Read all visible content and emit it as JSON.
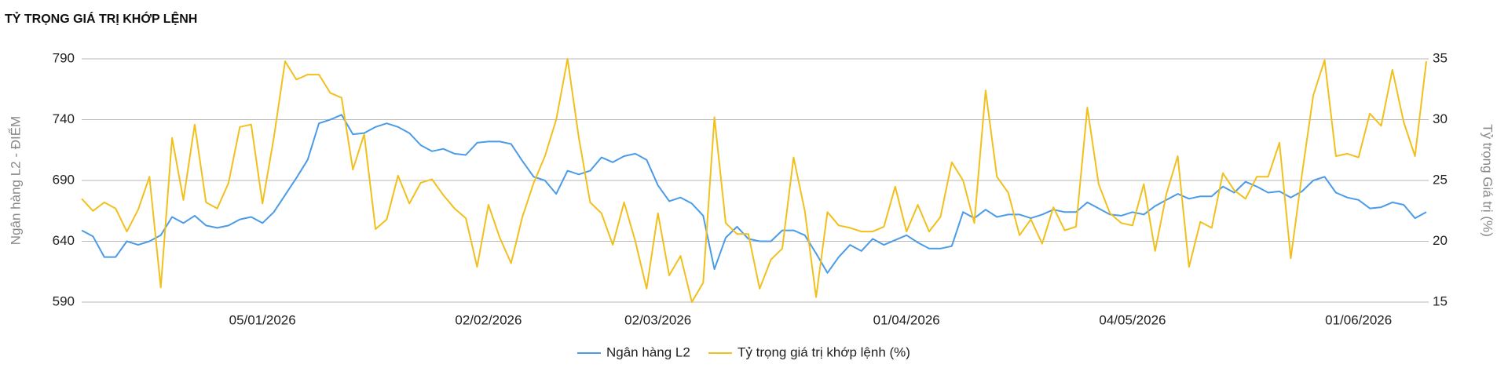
{
  "chart_data": {
    "type": "line",
    "title": "TỶ TRỌNG GIÁ TRỊ KHỚP LỆNH",
    "y_label": "Ngân hàng L2 - ĐIỂM",
    "y2_label": "Tỷ trọng Giá trị (%)",
    "categories": [
      null,
      null,
      null,
      null,
      null,
      null,
      null,
      null,
      null,
      null,
      null,
      null,
      null,
      null,
      null,
      null,
      "05/01/2026",
      null,
      null,
      null,
      null,
      null,
      null,
      null,
      null,
      null,
      null,
      null,
      null,
      null,
      null,
      null,
      null,
      null,
      null,
      null,
      "02/02/2026",
      null,
      null,
      null,
      null,
      null,
      null,
      null,
      null,
      null,
      null,
      null,
      null,
      null,
      null,
      "02/03/2026",
      null,
      null,
      null,
      null,
      null,
      null,
      null,
      null,
      null,
      null,
      null,
      null,
      null,
      null,
      null,
      null,
      null,
      null,
      null,
      null,
      null,
      "01/04/2026",
      null,
      null,
      null,
      null,
      null,
      null,
      null,
      null,
      null,
      null,
      null,
      null,
      null,
      null,
      null,
      null,
      null,
      null,
      null,
      "04/05/2026",
      null,
      null,
      null,
      null,
      null,
      null,
      null,
      null,
      null,
      null,
      null,
      null,
      null,
      null,
      null,
      null,
      null,
      null,
      null,
      "01/06/2026",
      null,
      null,
      null,
      null,
      null,
      null
    ],
    "series": [
      {
        "name": "Ngân hàng L2",
        "color": "#4a9be8",
        "axis": "y",
        "values": [
          649,
          644,
          627,
          627,
          640,
          637,
          640,
          645,
          660,
          655,
          661,
          653,
          651,
          653,
          658,
          660,
          655,
          664,
          678,
          692,
          707,
          737,
          740,
          744,
          728,
          729,
          734,
          737,
          734,
          729,
          719,
          714,
          716,
          712,
          711,
          721,
          722,
          722,
          720,
          706,
          693,
          690,
          679,
          698,
          695,
          698,
          709,
          705,
          710,
          712,
          707,
          686,
          673,
          676,
          671,
          661,
          617,
          643,
          652,
          642,
          640,
          640,
          649,
          649,
          645,
          630,
          614,
          627,
          637,
          632,
          642,
          637,
          641,
          645,
          639,
          634,
          634,
          636,
          664,
          659,
          666,
          660,
          662,
          662,
          659,
          662,
          666,
          664,
          664,
          672,
          667,
          662,
          661,
          664,
          662,
          669,
          674,
          679,
          675,
          677,
          677,
          685,
          680,
          689,
          685,
          680,
          681,
          676,
          681,
          690,
          693,
          680,
          676,
          674,
          667,
          668,
          672,
          670,
          659,
          664
        ]
      },
      {
        "name": "Tỷ trọng giá trị khớp lệnh (%)",
        "color": "#f2c01c",
        "axis": "y2",
        "values": [
          23.5,
          22.5,
          23.2,
          22.7,
          20.8,
          22.6,
          25.3,
          16.2,
          28.5,
          23.4,
          29.6,
          23.2,
          22.7,
          24.8,
          29.4,
          29.6,
          23.1,
          28.5,
          34.8,
          33.3,
          33.7,
          33.7,
          32.2,
          31.8,
          25.9,
          28.8,
          21.0,
          21.8,
          25.4,
          23.1,
          24.8,
          25.1,
          23.8,
          22.7,
          21.9,
          17.9,
          23.0,
          20.3,
          18.2,
          22.0,
          24.8,
          27.0,
          30.0,
          35.0,
          28.5,
          23.2,
          22.3,
          19.7,
          23.2,
          20.0,
          16.1,
          22.3,
          17.2,
          18.8,
          15.0,
          16.6,
          30.2,
          21.5,
          20.6,
          20.6,
          16.1,
          18.5,
          19.4,
          26.9,
          22.5,
          15.4,
          22.4,
          21.3,
          21.1,
          20.8,
          20.8,
          21.2,
          24.5,
          20.8,
          23.0,
          20.8,
          22.0,
          26.5,
          25.0,
          21.5,
          32.4,
          25.3,
          24.0,
          20.5,
          21.8,
          19.8,
          22.8,
          20.9,
          21.2,
          31.0,
          24.7,
          22.3,
          21.5,
          21.3,
          24.7,
          19.2,
          23.9,
          27.0,
          17.9,
          21.6,
          21.1,
          25.6,
          24.2,
          23.5,
          25.3,
          25.3,
          28.1,
          18.6,
          25.5,
          32.0,
          34.9,
          27.0,
          27.2,
          26.9,
          30.5,
          29.5,
          34.1,
          29.8,
          27.0,
          34.8
        ]
      }
    ],
    "ylim": [
      590,
      790
    ],
    "yticks": [
      590,
      640,
      690,
      740,
      790
    ],
    "y2lim": [
      15,
      35
    ],
    "y2ticks": [
      15,
      20,
      25,
      30,
      35
    ],
    "grid": true,
    "legend": "bottom"
  }
}
